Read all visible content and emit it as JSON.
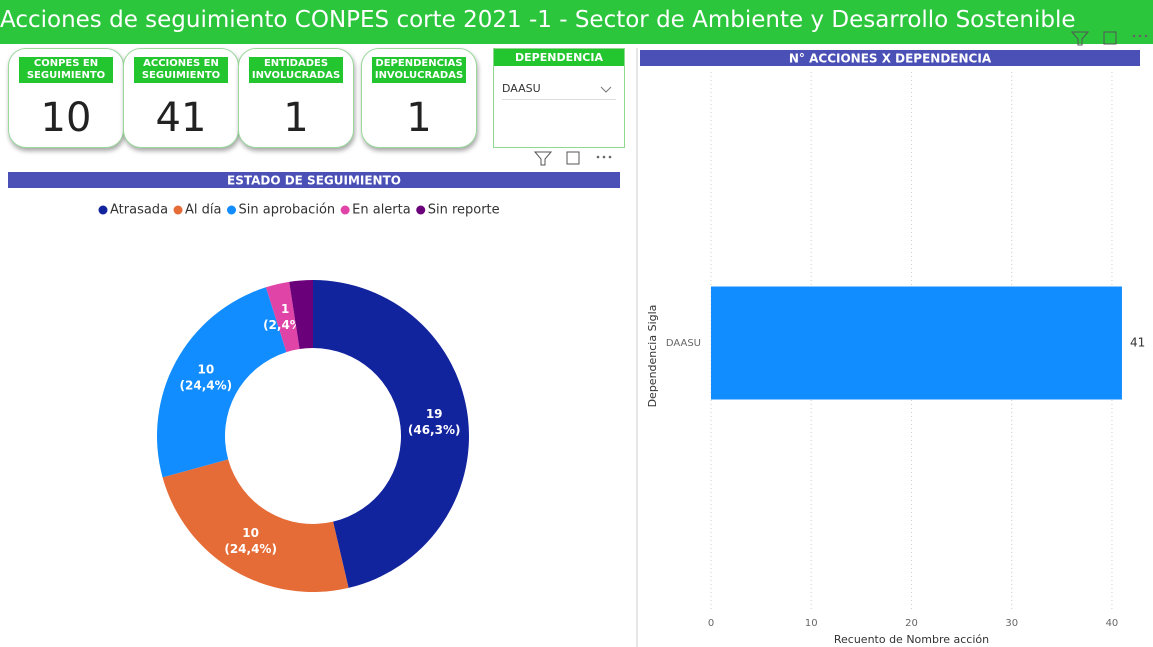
{
  "header": {
    "title": "Acciones de seguimiento CONPES  corte 2021 -1 - Sector de Ambiente y Desarrollo Sostenible"
  },
  "cards": [
    {
      "label": "CONPES EN SEGUIMIENTO",
      "value": "10"
    },
    {
      "label": "ACCIONES EN SEGUIMIENTO",
      "value": "41"
    },
    {
      "label": "ENTIDADES INVOLUCRADAS",
      "value": "1"
    },
    {
      "label": "DEPENDENCIAS INVOLUCRADAS",
      "value": "1"
    }
  ],
  "slicer": {
    "title": "DEPENDENCIA",
    "selected": "DAASU"
  },
  "chart_data": [
    {
      "type": "donut",
      "title": "ESTADO DE SEGUIMIENTO",
      "categories": [
        "Atrasada",
        "Al día",
        "Sin aprobación",
        "En alerta",
        "Sin reporte"
      ],
      "values": [
        19,
        10,
        10,
        1,
        1
      ],
      "value_labels": [
        "19 (46,3%)",
        "10 (24,4%)",
        "10 (24,4%)",
        "1 (2,4%)",
        null
      ],
      "colors": [
        "#12239e",
        "#e66c37",
        "#118dff",
        "#e044a7",
        "#6b007b"
      ],
      "legend": "top"
    },
    {
      "type": "hbar",
      "title": "N° ACCIONES X DEPENDENCIA",
      "categories": [
        "DAASU"
      ],
      "values": [
        41
      ],
      "color": "#118dff",
      "xlabel": "Recuento de Nombre acción",
      "ylabel": "Dependencia Sigla",
      "xlim": [
        0,
        43
      ],
      "xticks": [
        0,
        10,
        20,
        30,
        40
      ],
      "grid": true
    }
  ]
}
